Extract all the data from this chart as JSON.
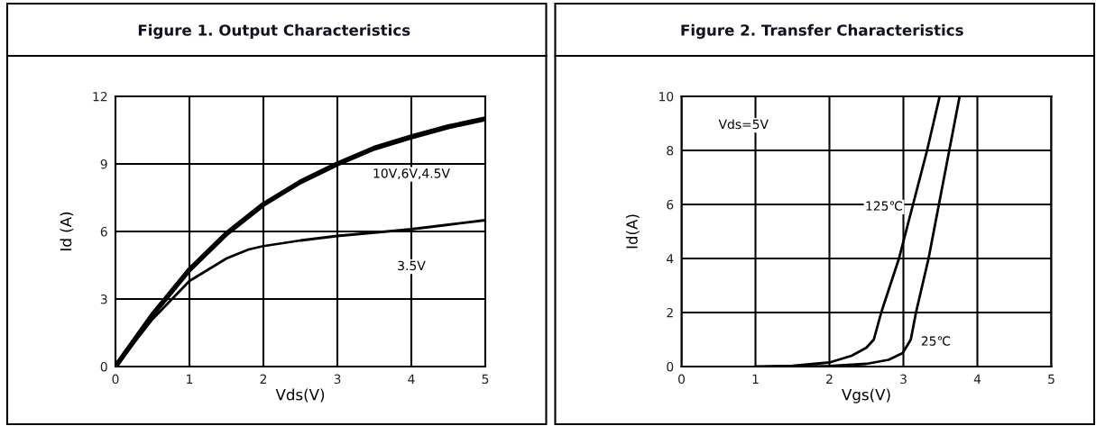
{
  "chart_data": [
    {
      "type": "line",
      "title": "Figure 1. Output Characteristics",
      "xlabel": "Vds(V)",
      "ylabel": "Id (A)",
      "xlim": [
        0,
        5
      ],
      "ylim": [
        0,
        12
      ],
      "xticks": [
        0,
        1,
        2,
        3,
        4,
        5
      ],
      "yticks": [
        0,
        3,
        6,
        9,
        12
      ],
      "grid": true,
      "legend": false,
      "marker": "none",
      "line_style": "solid",
      "series": [
        {
          "name": "10V,6V,4.5V",
          "color": "#000000",
          "x": [
            0,
            0.5,
            1,
            1.5,
            2,
            2.5,
            3,
            3.5,
            4,
            4.5,
            5
          ],
          "values": [
            0,
            2.3,
            4.3,
            5.9,
            7.2,
            8.2,
            9.0,
            9.7,
            10.2,
            10.65,
            11.0
          ]
        },
        {
          "name": "3.5V",
          "color": "#000000",
          "x": [
            0,
            0.5,
            1,
            1.5,
            1.8,
            2,
            2.5,
            3,
            3.5,
            4,
            4.5,
            5
          ],
          "values": [
            0,
            2.1,
            3.8,
            4.8,
            5.2,
            5.35,
            5.6,
            5.8,
            5.95,
            6.1,
            6.3,
            6.5
          ]
        }
      ]
    },
    {
      "type": "line",
      "title": "Figure 2. Transfer Characteristics",
      "xlabel": "Vgs(V)",
      "ylabel": "Id(A)",
      "xlim": [
        0,
        5
      ],
      "ylim": [
        0,
        10
      ],
      "xticks": [
        0,
        1,
        2,
        3,
        4,
        5
      ],
      "yticks": [
        0,
        2,
        4,
        6,
        8,
        10
      ],
      "grid": true,
      "legend": false,
      "marker": "none",
      "line_style": "solid",
      "annotations": [
        "Vds=5V"
      ],
      "series": [
        {
          "name": "125℃",
          "color": "#000000",
          "x": [
            1,
            1.5,
            2,
            2.3,
            2.5,
            2.6,
            2.7,
            2.94,
            3.13,
            3.32,
            3.49
          ],
          "values": [
            0,
            0.03,
            0.15,
            0.4,
            0.7,
            1.0,
            2.0,
            4.0,
            6.0,
            8.0,
            10.0
          ]
        },
        {
          "name": "25℃",
          "color": "#000000",
          "x": [
            1.5,
            2,
            2.5,
            2.8,
            2.99,
            3.1,
            3.17,
            3.34,
            3.48,
            3.62,
            3.76
          ],
          "values": [
            0,
            0.02,
            0.1,
            0.25,
            0.5,
            1.0,
            2.0,
            4.0,
            6.0,
            8.0,
            10.0
          ]
        }
      ]
    }
  ]
}
